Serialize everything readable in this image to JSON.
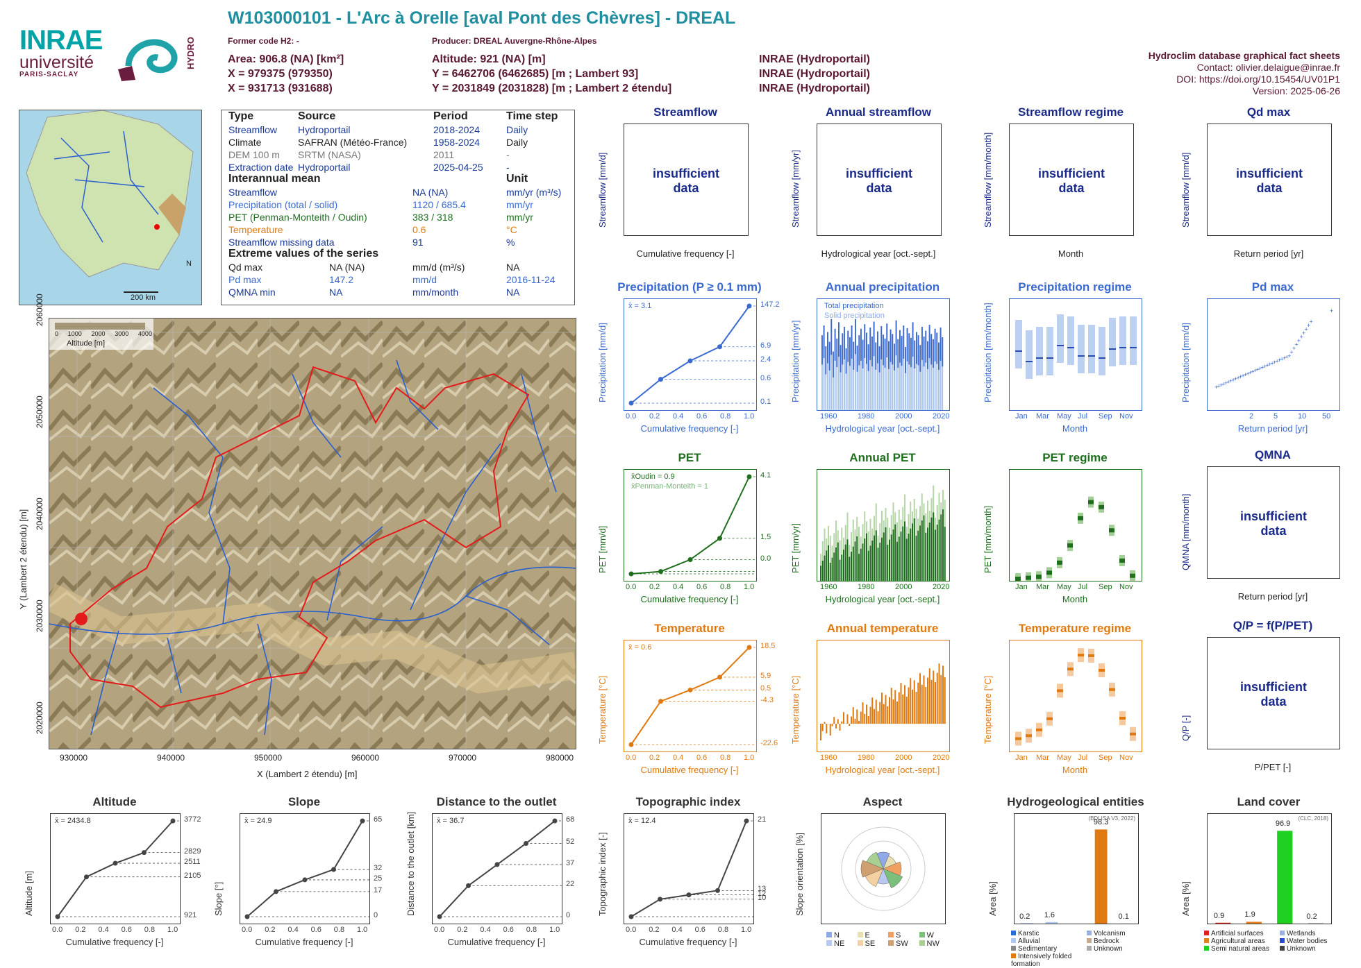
{
  "header": {
    "title": "W103000101 - L'Arc à Orelle [aval Pont des Chèvres] - DREAL",
    "former_code": "Former code H2: -",
    "producer": "Producer: DREAL Auvergne-Rhône-Alpes",
    "area": "Area: 906.8 (NA) [km²]",
    "altitude": "Altitude: 921 (NA) [m]",
    "x93": "X = 979375 (979350)",
    "y93": "Y = 6462706 (6462685) [m ; Lambert 93]",
    "x2e": "X = 931713 (931688)",
    "y2e": "Y = 2031849 (2031828) [m ; Lambert 2 étendu]",
    "src1": "INRAE (Hydroportail)",
    "src2": "INRAE (Hydroportail)",
    "src3": "INRAE (Hydroportail)"
  },
  "logos": {
    "inrae": "INRAE",
    "universite": "université",
    "paris_saclay": "PARIS-SACLAY",
    "hydro": "HYDRO"
  },
  "meta": {
    "l1": "Hydroclim database graphical fact sheets",
    "l2": "Contact: olivier.delaigue@inrae.fr",
    "l3": "DOI: https://doi.org/10.15454/UV01P1",
    "l4": "Version: 2025-06-26"
  },
  "info": {
    "h_type": "Type",
    "h_source": "Source",
    "h_period": "Period",
    "h_step": "Time step",
    "rows": [
      [
        "Streamflow",
        "Hydroportail",
        "2018-2024",
        "Daily"
      ],
      [
        "Climate",
        "SAFRAN (Météo-France)",
        "1958-2024",
        "Daily"
      ],
      [
        "DEM 100 m",
        "SRTM (NASA)",
        "2011",
        "-"
      ],
      [
        "Extraction date",
        "Hydroportail",
        "2025-04-25",
        "-"
      ]
    ],
    "h_inter": "Interannual mean",
    "h_unit": "Unit",
    "mean_rows": [
      [
        "Streamflow",
        "NA (NA)",
        "mm/yr (m³/s)"
      ],
      [
        "Precipitation (total / solid)",
        "1120 / 685.4",
        "mm/yr"
      ],
      [
        "PET (Penman-Monteith / Oudin)",
        "383 / 318",
        "mm/yr"
      ],
      [
        "Temperature",
        "0.6",
        "°C"
      ],
      [
        "Streamflow missing data",
        "91",
        "%"
      ]
    ],
    "h_extreme": "Extreme values of the series",
    "ext_rows": [
      [
        "Qd max",
        "NA (NA)",
        "mm/d (m³/s)",
        "NA"
      ],
      [
        "Pd max",
        "147.2",
        "mm/d",
        "2016-11-24"
      ],
      [
        "QMNA min",
        "NA",
        "mm/month",
        "NA"
      ]
    ]
  },
  "map": {
    "ylabel": "Y (Lambert 2 étendu) [m]",
    "xlabel": "X (Lambert 2 étendu) [m]",
    "xticks": [
      "930000",
      "940000",
      "950000",
      "960000",
      "970000",
      "980000"
    ],
    "yticks": [
      "2020000",
      "2030000",
      "2040000",
      "2050000",
      "2060000"
    ],
    "legend_label": "Altitude [m]",
    "legend_ticks": [
      "0",
      "1000",
      "2000",
      "3000",
      "4000"
    ],
    "scale": "200 km",
    "north": "N"
  },
  "insufficient": "insufficient\ndata",
  "row1": {
    "streamflow": {
      "title": "Streamflow",
      "ylabel": "Streamflow [mm/d]",
      "xlabel": "Cumulative frequency [-]"
    },
    "annual_streamflow": {
      "title": "Annual streamflow",
      "ylabel": "Streamflow [mm/yr]",
      "xlabel": "Hydrological year [oct.-sept.]"
    },
    "streamflow_regime": {
      "title": "Streamflow regime",
      "ylabel": "Streamflow [mm/month]",
      "xlabel": "Month"
    },
    "qd_max": {
      "title": "Qd max",
      "ylabel": "Streamflow [mm/d]",
      "xlabel": "Return period [yr]"
    }
  },
  "row2": {
    "precip": {
      "title": "Precipitation (P ≥ 0.1 mm)",
      "ylabel": "Precipitation [mm/d]",
      "xlabel": "Cumulative frequency [-]",
      "mean": "x̄ = 3.1"
    },
    "annual_precip": {
      "title": "Annual precipitation",
      "ylabel": "Precipitation [mm/yr]",
      "xlabel": "Hydrological year [oct.-sept.]",
      "leg1": "Total precipitation",
      "leg2": "Solid precipitation"
    },
    "precip_regime": {
      "title": "Precipitation regime",
      "ylabel": "Precipitation [mm/month]",
      "xlabel": "Month"
    },
    "pd_max": {
      "title": "Pd max",
      "ylabel": "Precipitation [mm/d]",
      "xlabel": "Return period [yr]"
    }
  },
  "row3": {
    "pet": {
      "title": "PET",
      "ylabel": "PET [mm/d]",
      "xlabel": "Cumulative frequency [-]",
      "leg1": "x̄Oudin = 0.9",
      "leg2": "x̄Penman-Monteith = 1"
    },
    "annual_pet": {
      "title": "Annual PET",
      "ylabel": "PET [mm/yr]",
      "xlabel": "Hydrological year [oct.-sept.]"
    },
    "pet_regime": {
      "title": "PET regime",
      "ylabel": "PET [mm/month]",
      "xlabel": "Month"
    },
    "qmna": {
      "title": "QMNA",
      "ylabel": "QMNA [mm/month]",
      "xlabel": "Return period [yr]"
    }
  },
  "row4": {
    "temp": {
      "title": "Temperature",
      "ylabel": "Temperature [°C]",
      "xlabel": "Cumulative frequency [-]",
      "mean": "x̄ = 0.6"
    },
    "annual_temp": {
      "title": "Annual temperature",
      "ylabel": "Temperature [°C]",
      "xlabel": "Hydrological year [oct.-sept.]"
    },
    "temp_regime": {
      "title": "Temperature regime",
      "ylabel": "Temperature [°C]",
      "xlabel": "Month"
    },
    "qp": {
      "title": "Q/P = f(P/PET)",
      "ylabel": "Q/P [-]",
      "xlabel": "P/PET [-]"
    }
  },
  "row5": {
    "altitude": {
      "title": "Altitude",
      "ylabel": "Altitude [m]",
      "xlabel": "Cumulative frequency [-]",
      "mean": "x̄ = 2434.8"
    },
    "slope": {
      "title": "Slope",
      "ylabel": "Slope [°]",
      "xlabel": "Cumulative frequency [-]",
      "mean": "x̄ = 24.9"
    },
    "distance": {
      "title": "Distance to the outlet",
      "ylabel": "Distance to the outlet [km]",
      "xlabel": "Cumulative frequency [-]",
      "mean": "x̄ = 36.7"
    },
    "topo": {
      "title": "Topographic index",
      "ylabel": "Topographic index [-]",
      "xlabel": "Cumulative frequency [-]",
      "mean": "x̄ = 12.4"
    },
    "aspect": {
      "title": "Aspect",
      "ylabel": "Slope orientation [%]",
      "legend": [
        "N",
        "E",
        "S",
        "W",
        "NE",
        "SE",
        "SW",
        "NW"
      ]
    },
    "hydrogeo": {
      "title": "Hydrogeological entities",
      "ylabel": "Area [%]",
      "source": "(BDLISA V3, 2022)",
      "legend": [
        "Karstic",
        "Volcanism",
        "Alluvial",
        "Bedrock",
        "Sedimentary",
        "Unknown",
        "Intensively folded formation"
      ]
    },
    "landcover": {
      "title": "Land cover",
      "ylabel": "Area [%]",
      "source": "(CLC, 2018)",
      "legend": [
        "Artificial surfaces",
        "Wetlands",
        "Agricultural areas",
        "Water bodies",
        "Semi natural areas",
        "Unknown"
      ]
    }
  },
  "chart_data": [
    {
      "type": "line",
      "title": "Precipitation (P ≥ 0.1 mm)",
      "x": [
        0,
        0.25,
        0.5,
        0.75,
        1.0
      ],
      "values": [
        0.1,
        0.6,
        2.4,
        6.9,
        147.2
      ],
      "ylim": [
        0.1,
        147.2
      ],
      "y_scale": "log",
      "right_ticks": [
        "147.2",
        "6.9",
        "2.4",
        "0.6",
        "0.1"
      ]
    },
    {
      "type": "bar",
      "title": "Annual precipitation",
      "series": [
        {
          "name": "Total precipitation",
          "values": [
            1150,
            1300,
            980,
            1200,
            1050,
            1400,
            900,
            1250,
            1100,
            1350,
            1000,
            1180,
            1280,
            950,
            1220,
            1120,
            1300,
            1050,
            1400,
            990,
            1150,
            1250,
            1080,
            1320,
            1190,
            1010,
            1270,
            1130,
            1360,
            1040,
            1210,
            980,
            1290,
            1160,
            1100,
            1330,
            1060,
            1240,
            1170,
            1020,
            1380,
            1090,
            1230,
            1140,
            1300,
            970,
            1260,
            1180,
            1110,
            1350,
            1070,
            1200,
            1150,
            1000,
            1280,
            1130,
            1220,
            1060,
            1310,
            1170,
            1090,
            1250,
            1190,
            1040,
            1270,
            1120
          ]
        },
        {
          "name": "Solid precipitation",
          "values": [
            700,
            800,
            550,
            720,
            610,
            850,
            500,
            760,
            660,
            820,
            580,
            700,
            780,
            560,
            740,
            680,
            790,
            620,
            860,
            590,
            690,
            760,
            640,
            800,
            710,
            600,
            770,
            670,
            830,
            620,
            720,
            580,
            780,
            690,
            650,
            810,
            630,
            740,
            700,
            610,
            840,
            650,
            730,
            680,
            790,
            570,
            750,
            700,
            660,
            820,
            640,
            710,
            690,
            590,
            770,
            670,
            730,
            630,
            800,
            700,
            650,
            750,
            710,
            620,
            760,
            670
          ]
        }
      ],
      "ylim": [
        0,
        1600
      ],
      "xlim": [
        1959,
        2024
      ]
    },
    {
      "type": "bar",
      "title": "Precipitation regime",
      "categories": [
        "Oct",
        "Nov",
        "Dec",
        "Jan",
        "Feb",
        "Mar",
        "Apr",
        "May",
        "Jun",
        "Jul",
        "Aug",
        "Sep"
      ],
      "medians": [
        85,
        70,
        75,
        75,
        93,
        90,
        78,
        78,
        75,
        88,
        90,
        90
      ]
    },
    {
      "type": "scatter",
      "title": "Pd max",
      "ylim": [
        0,
        160
      ],
      "max": 147.2
    },
    {
      "type": "line",
      "title": "PET",
      "x": [
        0,
        0.25,
        0.5,
        0.75,
        1.0
      ],
      "values": [
        0.0,
        0.1,
        0.6,
        1.5,
        4.1
      ],
      "ylim": [
        0,
        7
      ],
      "right_ticks": [
        "4.1",
        "1.5",
        "0.0"
      ]
    },
    {
      "type": "bar",
      "title": "Annual PET",
      "ylim": [
        250,
        620
      ],
      "xlim": [
        1959,
        2024
      ]
    },
    {
      "type": "bar",
      "title": "PET regime",
      "categories": [
        "Jan",
        "Mar",
        "May",
        "Jul",
        "Sep",
        "Nov"
      ],
      "medians": [
        2,
        3,
        4,
        8,
        18,
        35,
        62,
        78,
        73,
        50,
        20,
        5
      ]
    },
    {
      "type": "line",
      "title": "Temperature",
      "x": [
        0,
        0.25,
        0.5,
        0.75,
        1.0
      ],
      "values": [
        -22.6,
        -4.3,
        0.5,
        5.9,
        18.5
      ],
      "ylim": [
        -22.6,
        18.5
      ],
      "right_ticks": [
        "18.5",
        "5.9",
        "0.5",
        "-4.3",
        "-22.6"
      ]
    },
    {
      "type": "bar",
      "title": "Annual temperature",
      "ylim": [
        -1,
        3
      ],
      "xlim": [
        1959,
        2024
      ]
    },
    {
      "type": "bar",
      "title": "Temperature regime",
      "categories": [
        "Jan",
        "Mar",
        "May",
        "Jul",
        "Sep",
        "Nov"
      ],
      "medians": [
        -5.8,
        -5.3,
        -4.3,
        -2.4,
        2.4,
        6.1,
        8.5,
        8.4,
        5.9,
        2.6,
        -2.3,
        -5
      ]
    },
    {
      "type": "line",
      "title": "Altitude",
      "x": [
        0,
        0.25,
        0.5,
        0.75,
        1.0
      ],
      "values": [
        921,
        2105,
        2511,
        2829,
        3772
      ],
      "right_ticks": [
        "3772",
        "2829",
        "2511",
        "2105",
        "921"
      ]
    },
    {
      "type": "line",
      "title": "Slope",
      "x": [
        0,
        0.25,
        0.5,
        0.75,
        1.0
      ],
      "values": [
        0,
        17,
        25,
        32,
        65
      ],
      "right_ticks": [
        "65",
        "32",
        "25",
        "17",
        "0"
      ]
    },
    {
      "type": "line",
      "title": "Distance to the outlet",
      "x": [
        0,
        0.25,
        0.5,
        0.75,
        1.0
      ],
      "values": [
        0,
        22,
        37,
        52,
        68
      ],
      "right_ticks": [
        "68",
        "52",
        "37",
        "22",
        "0"
      ]
    },
    {
      "type": "line",
      "title": "Topographic index",
      "x": [
        0,
        0.25,
        0.5,
        0.75,
        1.0
      ],
      "values": [
        10,
        12,
        12.5,
        13,
        21
      ],
      "right_ticks": [
        "21",
        "13",
        "12",
        "10"
      ]
    },
    {
      "type": "bar",
      "title": "Hydrogeological entities",
      "categories": [
        "Karstic",
        "Alluvial",
        "Sedimentary",
        "Intensively folded formation",
        "Unknown"
      ],
      "values": [
        0.2,
        1.6,
        0,
        98.3,
        0.1
      ],
      "labels": [
        "0.2",
        "1.6",
        "98.3",
        "0.1"
      ],
      "ylim": [
        0,
        100
      ]
    },
    {
      "type": "bar",
      "title": "Land cover",
      "categories": [
        "Artificial surfaces",
        "Agricultural areas",
        "Semi natural areas",
        "Unknown"
      ],
      "values": [
        0.9,
        1.9,
        96.9,
        0.2
      ],
      "labels": [
        "0.9",
        "1.9",
        "96.9",
        "0.2"
      ],
      "ylim": [
        0,
        100
      ]
    }
  ]
}
